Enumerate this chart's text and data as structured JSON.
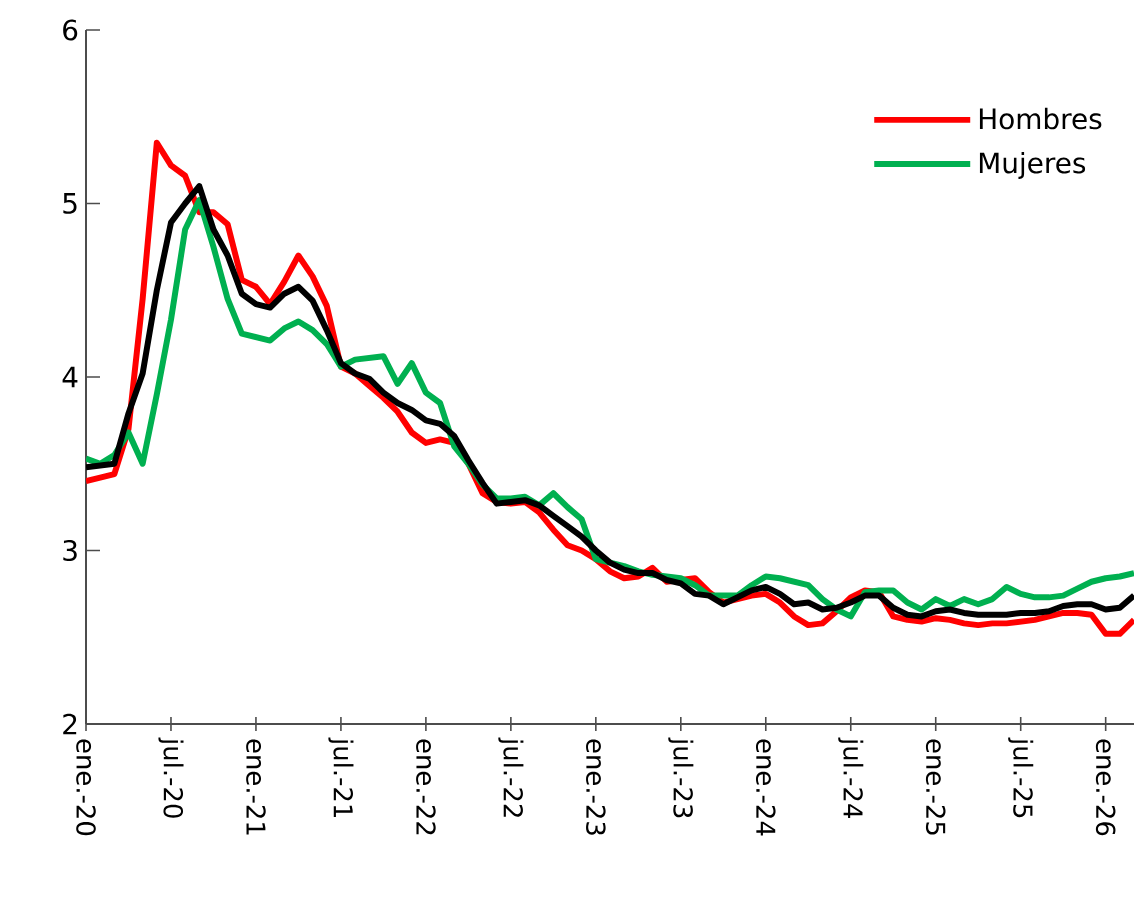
{
  "chart_data": {
    "type": "line",
    "x": [
      "2020-01",
      "2020-02",
      "2020-03",
      "2020-04",
      "2020-05",
      "2020-06",
      "2020-07",
      "2020-08",
      "2020-09",
      "2020-10",
      "2020-11",
      "2020-12",
      "2021-01",
      "2021-02",
      "2021-03",
      "2021-04",
      "2021-05",
      "2021-06",
      "2021-07",
      "2021-08",
      "2021-09",
      "2021-10",
      "2021-11",
      "2021-12",
      "2022-01",
      "2022-02",
      "2022-03",
      "2022-04",
      "2022-05",
      "2022-06",
      "2022-07",
      "2022-08",
      "2022-09",
      "2022-10",
      "2022-11",
      "2022-12",
      "2023-01",
      "2023-02",
      "2023-03",
      "2023-04",
      "2023-05",
      "2023-06",
      "2023-07",
      "2023-08",
      "2023-09",
      "2023-10",
      "2023-11",
      "2023-12",
      "2024-01",
      "2024-02",
      "2024-03",
      "2024-04",
      "2024-05",
      "2024-06",
      "2024-07",
      "2024-08",
      "2024-09",
      "2024-10",
      "2024-11",
      "2024-12",
      "2025-01",
      "2025-02",
      "2025-03",
      "2025-04",
      "2025-05",
      "2025-06",
      "2025-07",
      "2025-08",
      "2025-09",
      "2025-10",
      "2025-11",
      "2025-12",
      "2026-01",
      "2026-02",
      "2026-03"
    ],
    "series": [
      {
        "name": "Hombres",
        "color": "#ff0000",
        "values": [
          3.4,
          3.42,
          3.44,
          3.7,
          4.45,
          5.35,
          5.22,
          5.16,
          4.95,
          4.95,
          4.88,
          4.56,
          4.52,
          4.42,
          4.55,
          4.7,
          4.58,
          4.41,
          4.06,
          4.02,
          3.95,
          3.88,
          3.8,
          3.68,
          3.62,
          3.64,
          3.62,
          3.5,
          3.33,
          3.28,
          3.27,
          3.28,
          3.22,
          3.12,
          3.03,
          3.0,
          2.95,
          2.88,
          2.84,
          2.85,
          2.9,
          2.82,
          2.83,
          2.84,
          2.76,
          2.7,
          2.72,
          2.74,
          2.75,
          2.7,
          2.62,
          2.57,
          2.58,
          2.65,
          2.73,
          2.77,
          2.76,
          2.62,
          2.6,
          2.59,
          2.61,
          2.6,
          2.58,
          2.57,
          2.58,
          2.58,
          2.59,
          2.6,
          2.62,
          2.64,
          2.64,
          2.63,
          2.52,
          2.52,
          2.6
        ]
      },
      {
        "name": "Mujeres",
        "color": "#00b050",
        "values": [
          3.53,
          3.5,
          3.55,
          3.68,
          3.5,
          3.9,
          4.33,
          4.85,
          5.02,
          4.75,
          4.45,
          4.25,
          4.23,
          4.21,
          4.28,
          4.32,
          4.27,
          4.19,
          4.06,
          4.1,
          4.11,
          4.12,
          3.96,
          4.08,
          3.91,
          3.85,
          3.6,
          3.5,
          3.38,
          3.3,
          3.3,
          3.31,
          3.26,
          3.33,
          3.25,
          3.18,
          2.95,
          2.93,
          2.91,
          2.88,
          2.86,
          2.85,
          2.84,
          2.8,
          2.74,
          2.74,
          2.74,
          2.8,
          2.85,
          2.84,
          2.82,
          2.8,
          2.72,
          2.66,
          2.62,
          2.76,
          2.77,
          2.77,
          2.7,
          2.66,
          2.72,
          2.68,
          2.72,
          2.69,
          2.72,
          2.79,
          2.75,
          2.73,
          2.73,
          2.74,
          2.78,
          2.82,
          2.84,
          2.85,
          2.87
        ]
      },
      {
        "color": "#000000",
        "values": [
          3.48,
          3.49,
          3.5,
          3.79,
          4.02,
          4.5,
          4.89,
          5.0,
          5.1,
          4.85,
          4.7,
          4.48,
          4.42,
          4.4,
          4.48,
          4.52,
          4.44,
          4.27,
          4.08,
          4.02,
          3.99,
          3.91,
          3.85,
          3.81,
          3.75,
          3.73,
          3.66,
          3.52,
          3.39,
          3.27,
          3.28,
          3.29,
          3.26,
          3.2,
          3.14,
          3.08,
          3.0,
          2.93,
          2.89,
          2.87,
          2.87,
          2.83,
          2.81,
          2.75,
          2.74,
          2.69,
          2.73,
          2.77,
          2.79,
          2.75,
          2.69,
          2.7,
          2.66,
          2.67,
          2.7,
          2.74,
          2.74,
          2.67,
          2.63,
          2.62,
          2.65,
          2.66,
          2.64,
          2.63,
          2.63,
          2.63,
          2.64,
          2.64,
          2.65,
          2.68,
          2.69,
          2.69,
          2.66,
          2.67,
          2.74
        ]
      }
    ],
    "xlim": [
      "2020-01",
      "2026-03"
    ],
    "xticks": [
      {
        "value": "2020-01",
        "label": "ene.-20"
      },
      {
        "value": "2020-07",
        "label": "jul.-20"
      },
      {
        "value": "2021-01",
        "label": "ene.-21"
      },
      {
        "value": "2021-07",
        "label": "jul.-21"
      },
      {
        "value": "2022-01",
        "label": "ene.-22"
      },
      {
        "value": "2022-07",
        "label": "jul.-22"
      },
      {
        "value": "2023-01",
        "label": "ene.-23"
      },
      {
        "value": "2023-07",
        "label": "jul.-23"
      },
      {
        "value": "2024-01",
        "label": "ene.-24"
      },
      {
        "value": "2024-07",
        "label": "jul.-24"
      },
      {
        "value": "2025-01",
        "label": "ene.-25"
      },
      {
        "value": "2025-07",
        "label": "jul.-25"
      },
      {
        "value": "2026-01",
        "label": "ene.-26"
      }
    ],
    "ylim": [
      2,
      6
    ],
    "yticks": [
      2,
      3,
      4,
      5,
      6
    ],
    "legend": "top right",
    "grid": false,
    "marker": "none",
    "line_style": "solid"
  }
}
